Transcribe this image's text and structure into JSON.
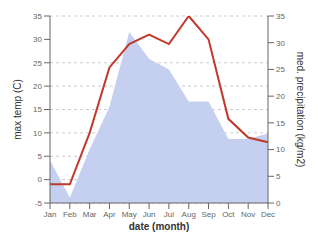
{
  "chart_data": {
    "type": "line",
    "categories": [
      "Jan",
      "Feb",
      "Mar",
      "Apr",
      "May",
      "Jun",
      "Jul",
      "Aug",
      "Sep",
      "Oct",
      "Nov",
      "Dec"
    ],
    "xlabel": "date (month)",
    "ylabel": "max temp (C)",
    "y2label": "med. precipitation (kg/m2)",
    "ylim": [
      -5,
      35
    ],
    "yticks": [
      -5,
      0,
      5,
      10,
      15,
      20,
      25,
      30,
      35
    ],
    "y2lim": [
      0,
      35
    ],
    "y2ticks": [
      0,
      5,
      10,
      15,
      20,
      25,
      30,
      35
    ],
    "grid": true,
    "series": [
      {
        "type": "area",
        "axis": "y2",
        "color": "#c5cff0",
        "values": [
          8,
          1,
          10,
          18,
          32,
          27,
          25,
          19,
          19,
          12,
          12,
          13
        ]
      },
      {
        "type": "line",
        "color": "#c0392b",
        "values": [
          -1,
          -1,
          10,
          24,
          29,
          31,
          29,
          35,
          30,
          13,
          9,
          8
        ]
      }
    ]
  }
}
